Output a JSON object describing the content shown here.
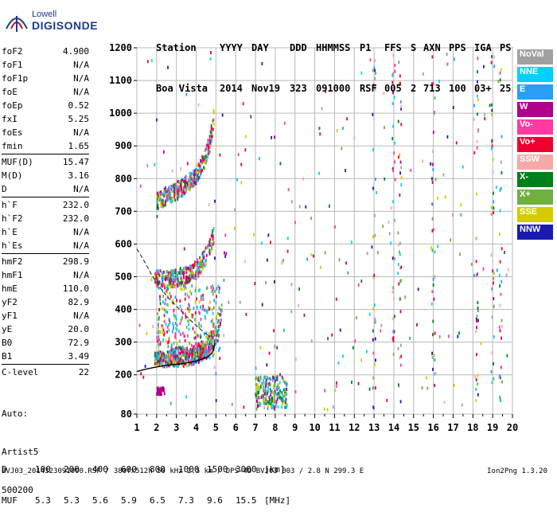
{
  "logo": {
    "line1": "Lowell",
    "line2": "DIGISONDE"
  },
  "header": {
    "row1": [
      "Station",
      "YYYY",
      "DAY",
      "DDD",
      "HHMMSS",
      "P1",
      "FFS",
      "S",
      "AXN",
      "PPS",
      "IGA",
      "PS"
    ],
    "row2": [
      "Boa Vista",
      "2014",
      "Nov19",
      "323",
      "091000",
      "RSF",
      "005",
      "2",
      "713",
      "100",
      "03+",
      "25"
    ]
  },
  "params": [
    [
      {
        "n": "foF2",
        "v": "4.900"
      },
      {
        "n": "foF1",
        "v": "N/A"
      },
      {
        "n": "foF1p",
        "v": "N/A"
      },
      {
        "n": "foE",
        "v": "N/A"
      },
      {
        "n": "foEp",
        "v": "0.52"
      },
      {
        "n": "fxI",
        "v": "5.25"
      },
      {
        "n": "foEs",
        "v": "N/A"
      },
      {
        "n": "fmin",
        "v": "1.65"
      }
    ],
    [
      {
        "n": "MUF(D)",
        "v": "15.47"
      },
      {
        "n": "M(D)",
        "v": "3.16"
      },
      {
        "n": "D",
        "v": "N/A"
      }
    ],
    [
      {
        "n": "h`F",
        "v": "232.0"
      },
      {
        "n": "h`F2",
        "v": "232.0"
      },
      {
        "n": "h`E",
        "v": "N/A"
      },
      {
        "n": "h`Es",
        "v": "N/A"
      }
    ],
    [
      {
        "n": "hmF2",
        "v": "298.9"
      },
      {
        "n": "hmF1",
        "v": "N/A"
      },
      {
        "n": "hmE",
        "v": "110.0"
      },
      {
        "n": "yF2",
        "v": "82.9"
      },
      {
        "n": "yF1",
        "v": "N/A"
      },
      {
        "n": "yE",
        "v": "20.0"
      },
      {
        "n": "B0",
        "v": "72.9"
      },
      {
        "n": "B1",
        "v": "3.49"
      }
    ],
    [
      {
        "n": "C-level",
        "v": "22"
      }
    ]
  ],
  "auto": {
    "line1": "Auto:",
    "line2": "Artist5",
    "line3": "500200"
  },
  "legend": [
    {
      "label": "NoVal",
      "color": "#a0a0a0"
    },
    {
      "label": "NNE",
      "color": "#00d0ff"
    },
    {
      "label": "E",
      "color": "#2a9df4"
    },
    {
      "label": "W",
      "color": "#b0008c"
    },
    {
      "label": "Vo-",
      "color": "#ff3aa0"
    },
    {
      "label": "Vo+",
      "color": "#ee0030"
    },
    {
      "label": "SSW",
      "color": "#f4a8a8"
    },
    {
      "label": "X-",
      "color": "#00801a"
    },
    {
      "label": "X+",
      "color": "#70b040"
    },
    {
      "label": "SSE",
      "color": "#d4cc00"
    },
    {
      "label": "NNW",
      "color": "#1a1ab0"
    }
  ],
  "dmuf": {
    "d_label": "D",
    "d_values": [
      "100",
      "200",
      "400",
      "600",
      "800",
      "1000",
      "1500",
      "3000"
    ],
    "d_unit": "[km]",
    "muf_label": "MUF",
    "muf_values": [
      "5.3",
      "5.3",
      "5.6",
      "5.9",
      "6.5",
      "7.3",
      "9.6",
      "15.5"
    ],
    "muf_unit": "[MHz]"
  },
  "footer": {
    "left": "BVJ03_2014323091000.RSF / 380fx512h 50 kHz 2.5 km / DPS-4D BVJ03 003 / 2.8 N 299.3 E",
    "right": "Ion2Png 1.3.20"
  },
  "chart_data": {
    "type": "scatter",
    "xlim": [
      1,
      20
    ],
    "ylim": [
      80,
      1200
    ],
    "x_ticks": [
      1,
      2,
      3,
      4,
      5,
      6,
      7,
      8,
      9,
      10,
      11,
      12,
      13,
      14,
      15,
      16,
      17,
      18,
      19,
      20
    ],
    "y_ticks": [
      80,
      200,
      300,
      400,
      500,
      600,
      700,
      800,
      900,
      1000,
      1100,
      1200
    ],
    "grid": true,
    "traces": [
      {
        "name": "O-trace F",
        "x": [
          1.9,
          2.3,
          2.8,
          3.3,
          3.8,
          4.2,
          4.5,
          4.7,
          4.85,
          4.9
        ],
        "y": [
          245,
          238,
          236,
          238,
          244,
          255,
          270,
          290,
          320,
          360
        ]
      },
      {
        "name": "O-trace 2nd hop",
        "x": [
          1.9,
          2.5,
          3.0,
          3.5,
          4.0,
          4.4,
          4.7,
          4.9
        ],
        "y": [
          480,
          478,
          485,
          495,
          510,
          540,
          580,
          620
        ]
      },
      {
        "name": "O-trace 3rd hop",
        "x": [
          2.0,
          2.5,
          3.0,
          3.5,
          4.0,
          4.4,
          4.7,
          4.9
        ],
        "y": [
          720,
          735,
          750,
          770,
          800,
          840,
          900,
          980
        ]
      },
      {
        "name": "X-trace",
        "x": [
          2.5,
          3.0,
          3.5,
          4.0,
          4.5,
          4.8,
          5.1,
          5.3
        ],
        "y": [
          245,
          243,
          245,
          252,
          265,
          285,
          320,
          380
        ]
      }
    ],
    "profile": {
      "x": [
        1.0,
        1.5,
        2.0,
        2.5,
        3.0,
        3.5,
        4.0,
        4.3,
        4.6,
        4.8,
        4.9,
        4.95
      ],
      "y": [
        210,
        218,
        224,
        229,
        232,
        236,
        242,
        248,
        256,
        266,
        282,
        298
      ]
    },
    "profile_dashed": {
      "x": [
        1.0,
        1.4,
        1.8,
        2.2,
        2.6,
        3.0,
        3.4,
        3.8,
        4.2,
        4.5,
        4.7
      ],
      "y": [
        585,
        545,
        500,
        465,
        435,
        410,
        385,
        362,
        340,
        325,
        315
      ]
    }
  }
}
